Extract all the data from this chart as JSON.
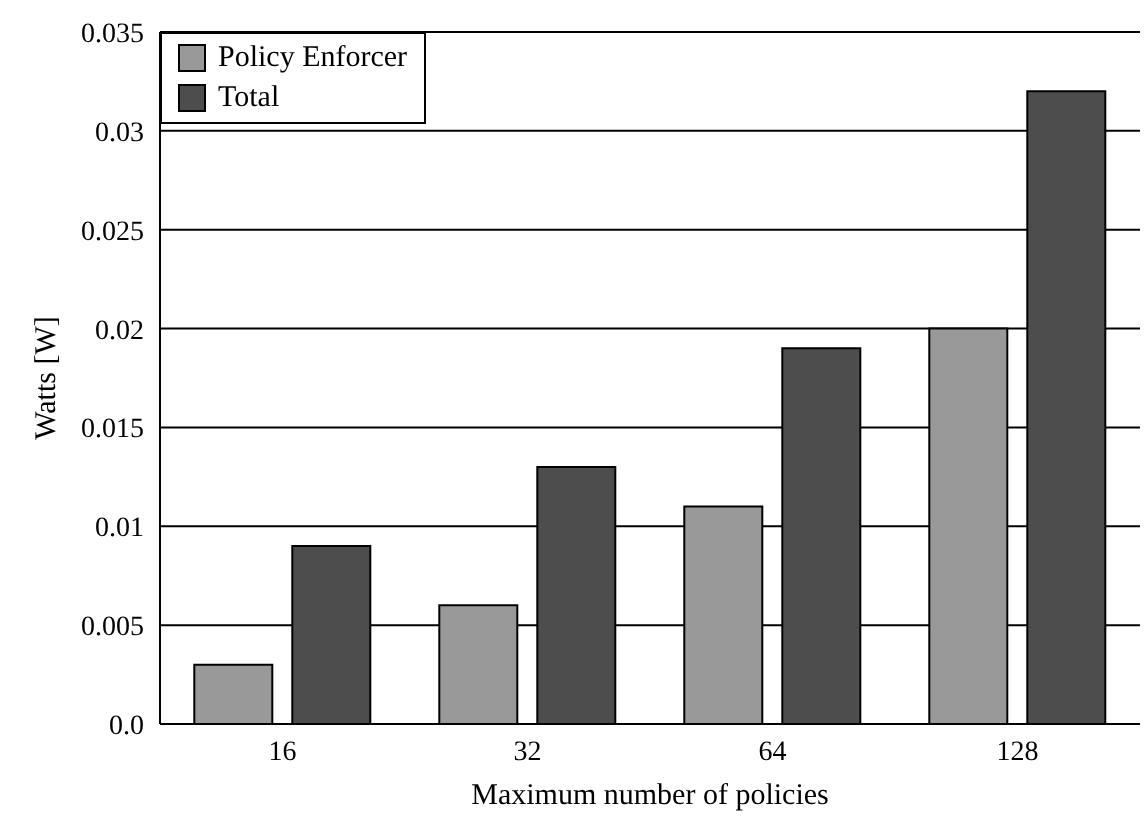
{
  "chart_data": {
    "type": "bar",
    "xlabel": "Maximum number of policies",
    "ylabel": "Watts [W]",
    "categories": [
      "16",
      "32",
      "64",
      "128"
    ],
    "series": [
      {
        "name": "Policy Enforcer",
        "color": "#999999",
        "values": [
          0.003,
          0.006,
          0.011,
          0.02
        ]
      },
      {
        "name": "Total",
        "color": "#4d4d4d",
        "values": [
          0.009,
          0.013,
          0.019,
          0.032
        ]
      }
    ],
    "ylim": [
      0,
      0.035
    ],
    "yticks": [
      {
        "value": 0,
        "label": "0.0"
      },
      0.005,
      0.01,
      0.015,
      0.02,
      0.025,
      0.03,
      0.035
    ],
    "grid": "y",
    "legend": "top left"
  }
}
